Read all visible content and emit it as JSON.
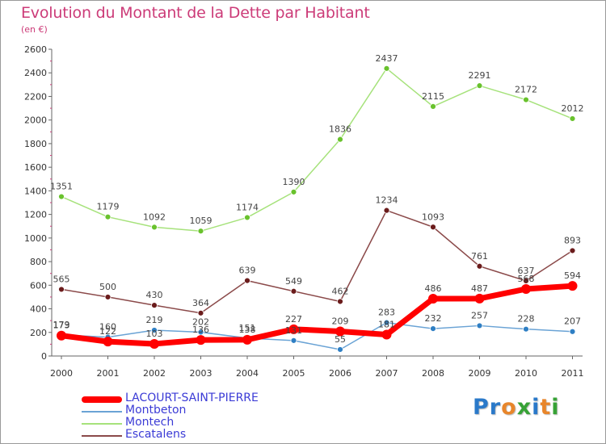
{
  "title": "Evolution du Montant de la Dette par Habitant",
  "subtitle": "(en €)",
  "logo": {
    "text": "Proxiti",
    "letters": [
      "P",
      "r",
      "o",
      "x",
      "i",
      "t",
      "i"
    ],
    "colors": [
      "#2a79c9",
      "#2a79c9",
      "#e8862b",
      "#37a236",
      "#2a79c9",
      "#e8862b",
      "#37a236"
    ]
  },
  "chart_data": {
    "type": "line",
    "x": [
      "2000",
      "2001",
      "2002",
      "2003",
      "2004",
      "2005",
      "2006",
      "2007",
      "2008",
      "2009",
      "2010",
      "2011"
    ],
    "ylim": [
      0,
      2600
    ],
    "yticks": [
      0,
      200,
      400,
      600,
      800,
      1000,
      1200,
      1400,
      1600,
      1800,
      2000,
      2200,
      2400,
      2600
    ],
    "grid": false,
    "legend_position": "bottom-left",
    "series": [
      {
        "name": "LACOURT-SAINT-PIERRE",
        "color": "#ff0000",
        "marker_color": "#ff0000",
        "values": [
          173,
          122,
          103,
          136,
          138,
          227,
          209,
          181,
          486,
          487,
          568,
          594
        ]
      },
      {
        "name": "Montbeton",
        "color": "#6aa3d5",
        "marker_color": "#2f7fc4",
        "values": [
          179,
          160,
          219,
          202,
          151,
          131,
          55,
          283,
          232,
          257,
          228,
          207
        ]
      },
      {
        "name": "Montech",
        "color": "#a6e27b",
        "marker_color": "#69c22d",
        "values": [
          1351,
          1179,
          1092,
          1059,
          1174,
          1390,
          1836,
          2437,
          2115,
          2291,
          2172,
          2012
        ]
      },
      {
        "name": "Escatalens",
        "color": "#8b4a4a",
        "marker_color": "#6b1c1c",
        "values": [
          565,
          500,
          430,
          364,
          639,
          549,
          462,
          1234,
          1093,
          761,
          637,
          893
        ]
      }
    ]
  }
}
